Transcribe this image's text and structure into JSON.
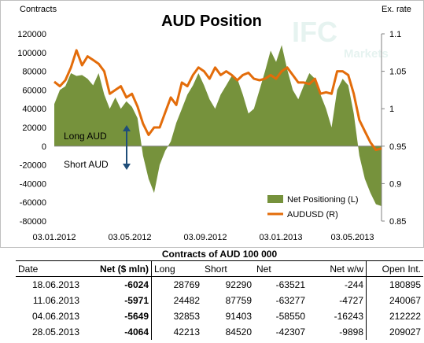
{
  "chart_data": {
    "type": "area",
    "title": "AUD Position",
    "ylabel_left": "Contracts",
    "ylabel_right": "Ex. rate",
    "x_ticks": [
      "03.01.2012",
      "03.05.2012",
      "03.09.2012",
      "03.01.2013",
      "03.05.2013"
    ],
    "ylim_left": [
      -80000,
      120000
    ],
    "y_ticks_left": [
      120000,
      100000,
      80000,
      60000,
      40000,
      20000,
      0,
      -20000,
      -40000,
      -60000,
      -80000
    ],
    "ylim_right": [
      0.85,
      1.1
    ],
    "y_ticks_right": [
      1.1,
      1.05,
      1,
      0.95,
      0.9,
      0.85
    ],
    "annotations": [
      "Long AUD",
      "Short AUD"
    ],
    "watermark": "IFC Markets",
    "legend_position": "bottom-right",
    "series": [
      {
        "name": "Net Positioning (L)",
        "axis": "left",
        "kind": "area",
        "color": "#76923c",
        "values": [
          45000,
          60000,
          64000,
          78000,
          75000,
          76000,
          72000,
          65000,
          78000,
          55000,
          40000,
          52000,
          40000,
          48000,
          42000,
          30000,
          -10000,
          -35000,
          -50000,
          -20000,
          -5000,
          5000,
          25000,
          40000,
          55000,
          65000,
          78000,
          65000,
          50000,
          40000,
          55000,
          65000,
          75000,
          72000,
          55000,
          35000,
          40000,
          60000,
          80000,
          102000,
          90000,
          108000,
          82000,
          60000,
          50000,
          65000,
          78000,
          72000,
          55000,
          40000,
          20000,
          60000,
          72000,
          65000,
          35000,
          -10000,
          -35000,
          -50000,
          -62000,
          -64000
        ]
      },
      {
        "name": "AUDUSD (R)",
        "axis": "right",
        "kind": "line",
        "color": "#e36c0a",
        "values": [
          1.036,
          1.03,
          1.038,
          1.055,
          1.078,
          1.058,
          1.07,
          1.065,
          1.06,
          1.05,
          1.02,
          1.025,
          1.03,
          1.015,
          1.02,
          1.003,
          0.98,
          0.965,
          0.975,
          0.975,
          0.995,
          1.015,
          1.005,
          1.035,
          1.03,
          1.045,
          1.055,
          1.05,
          1.04,
          1.055,
          1.045,
          1.05,
          1.045,
          1.038,
          1.045,
          1.048,
          1.04,
          1.038,
          1.04,
          1.045,
          1.04,
          1.05,
          1.055,
          1.045,
          1.035,
          1.035,
          1.033,
          1.04,
          1.02,
          1.022,
          1.02,
          1.05,
          1.05,
          1.045,
          1.02,
          0.985,
          0.97,
          0.955,
          0.945,
          0.947
        ]
      }
    ]
  },
  "table": {
    "caption": "Contracts of AUD 100 000",
    "headers": {
      "date": "Date",
      "net_mln": "Net ($ mln)",
      "long": "Long",
      "short": "Short",
      "net": "Net",
      "net_ww": "Net w/w",
      "open_int": "Open Int."
    },
    "rows": [
      {
        "date": "18.06.2013",
        "net_mln": "-6024",
        "long": "28769",
        "short": "92290",
        "net": "-63521",
        "net_ww": "-244",
        "open_int": "180895"
      },
      {
        "date": "11.06.2013",
        "net_mln": "-5971",
        "long": "24482",
        "short": "87759",
        "net": "-63277",
        "net_ww": "-4727",
        "open_int": "240067"
      },
      {
        "date": "04.06.2013",
        "net_mln": "-5649",
        "long": "32853",
        "short": "91403",
        "net": "-58550",
        "net_ww": "-16243",
        "open_int": "212222"
      },
      {
        "date": "28.05.2013",
        "net_mln": "-4064",
        "long": "42213",
        "short": "84520",
        "net": "-42307",
        "net_ww": "-9898",
        "open_int": "209027"
      }
    ]
  }
}
